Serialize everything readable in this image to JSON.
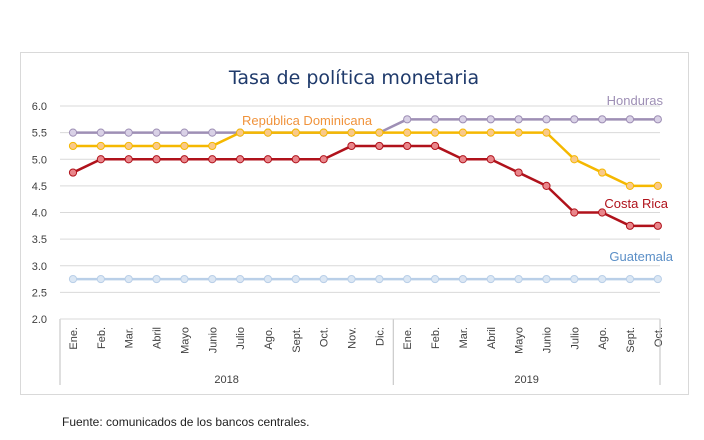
{
  "chart_data": {
    "type": "line",
    "title": "Tasa de política monetaria",
    "categories": [
      "Ene.",
      "Feb.",
      "Mar.",
      "Abril",
      "Mayo",
      "Junio",
      "Julio",
      "Ago.",
      "Sept.",
      "Oct.",
      "Nov.",
      "Dic.",
      "Ene.",
      "Feb.",
      "Mar.",
      "Abril",
      "Mayo",
      "Junio",
      "Julio",
      "Ago.",
      "Sept.",
      "Oct."
    ],
    "year_groups": [
      {
        "label": "2018",
        "count": 12
      },
      {
        "label": "2019",
        "count": 10
      }
    ],
    "ylim": [
      2.0,
      6.0
    ],
    "yticks": [
      "2.0",
      "2.5",
      "3.0",
      "3.5",
      "4.0",
      "4.5",
      "5.0",
      "5.5",
      "6.0"
    ],
    "grid": true,
    "series": [
      {
        "name": "Honduras",
        "color": "#9e8fb5",
        "marker": "#d9d1e6",
        "values": [
          5.5,
          5.5,
          5.5,
          5.5,
          5.5,
          5.5,
          5.5,
          5.5,
          5.5,
          5.5,
          5.5,
          5.5,
          5.75,
          5.75,
          5.75,
          5.75,
          5.75,
          5.75,
          5.75,
          5.75,
          5.75,
          5.75
        ]
      },
      {
        "name": "República Dominicana",
        "color": "#f5b800",
        "marker": "#f9c98a",
        "values": [
          5.25,
          5.25,
          5.25,
          5.25,
          5.25,
          5.25,
          5.5,
          5.5,
          5.5,
          5.5,
          5.5,
          5.5,
          5.5,
          5.5,
          5.5,
          5.5,
          5.5,
          5.5,
          5.0,
          4.75,
          4.5,
          4.5
        ]
      },
      {
        "name": "Costa Rica",
        "color": "#b0121b",
        "marker": "#e9868b",
        "values": [
          4.75,
          5.0,
          5.0,
          5.0,
          5.0,
          5.0,
          5.0,
          5.0,
          5.0,
          5.0,
          5.25,
          5.25,
          5.25,
          5.25,
          5.0,
          5.0,
          4.75,
          4.5,
          4.0,
          4.0,
          3.75,
          3.75
        ]
      },
      {
        "name": "Guatemala",
        "color": "#b9cfe8",
        "marker": "#dbe7f4",
        "values": [
          2.75,
          2.75,
          2.75,
          2.75,
          2.75,
          2.75,
          2.75,
          2.75,
          2.75,
          2.75,
          2.75,
          2.75,
          2.75,
          2.75,
          2.75,
          2.75,
          2.75,
          2.75,
          2.75,
          2.75,
          2.75,
          2.75
        ]
      }
    ],
    "series_label_colors": {
      "Honduras": "#9e8fb5",
      "República Dominicana": "#f0933c",
      "Costa Rica": "#b0121b",
      "Guatemala": "#5b8fc7"
    }
  },
  "source_note": "Fuente: comunicados de los bancos centrales."
}
